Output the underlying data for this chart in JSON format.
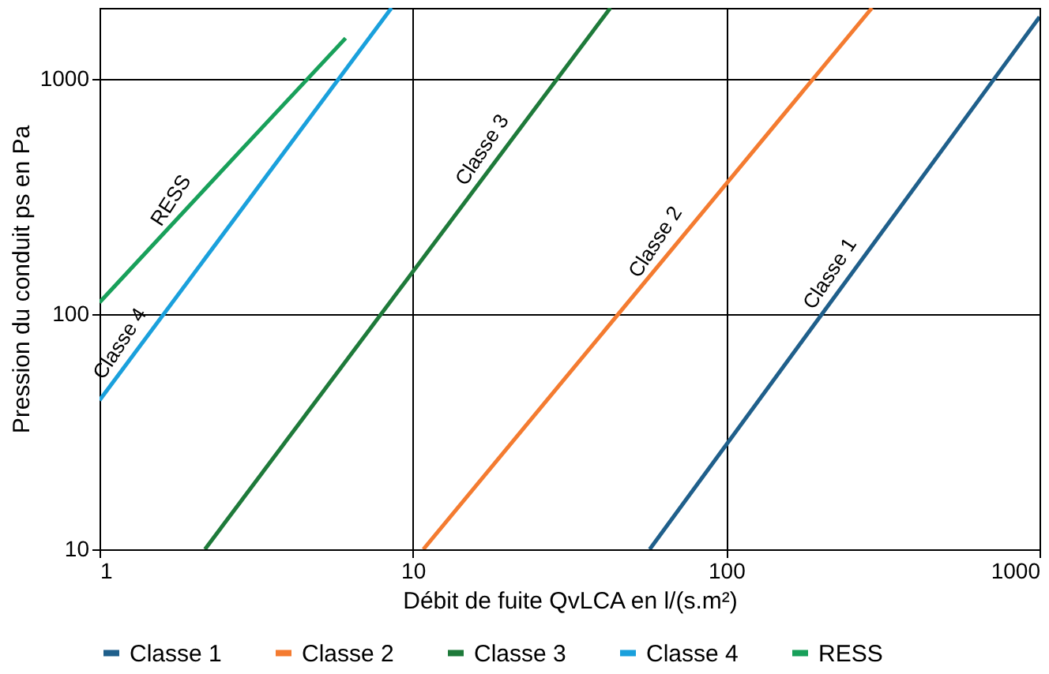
{
  "chart_data": {
    "type": "line",
    "xlabel": "Débit de fuite QvLCA en l/(s.m²)",
    "ylabel": "Pression du conduit ps en Pa",
    "log": "xy",
    "grid": true,
    "legend": "bottom",
    "line_style": "solid",
    "marker": "none",
    "xlim": [
      1,
      1000
    ],
    "xticks": [
      1,
      10,
      100,
      1000
    ],
    "ylim": [
      10,
      2000
    ],
    "yticks": [
      10,
      100,
      1000
    ],
    "series": [
      {
        "name": "Classe 1",
        "color": "#1f5f8b",
        "x": [
          57,
          1000
        ],
        "values": [
          10,
          1830
        ]
      },
      {
        "name": "Classe 2",
        "color": "#f47b30",
        "x": [
          10.8,
          292
        ],
        "values": [
          10,
          2000
        ]
      },
      {
        "name": "Classe 3",
        "color": "#1e7a3a",
        "x": [
          2.17,
          42.7
        ],
        "values": [
          10,
          2000
        ]
      },
      {
        "name": "Classe 4",
        "color": "#1aa0dc",
        "x": [
          1,
          8.55
        ],
        "values": [
          43,
          2000
        ]
      },
      {
        "name": "RESS",
        "color": "#18a05a",
        "x": [
          1,
          2.8,
          6.1
        ],
        "values": [
          112,
          490,
          1487
        ]
      }
    ],
    "annotations": [
      "Classe 1",
      "Classe 2",
      "Classe 3",
      "Classe 4",
      "RESS"
    ]
  }
}
